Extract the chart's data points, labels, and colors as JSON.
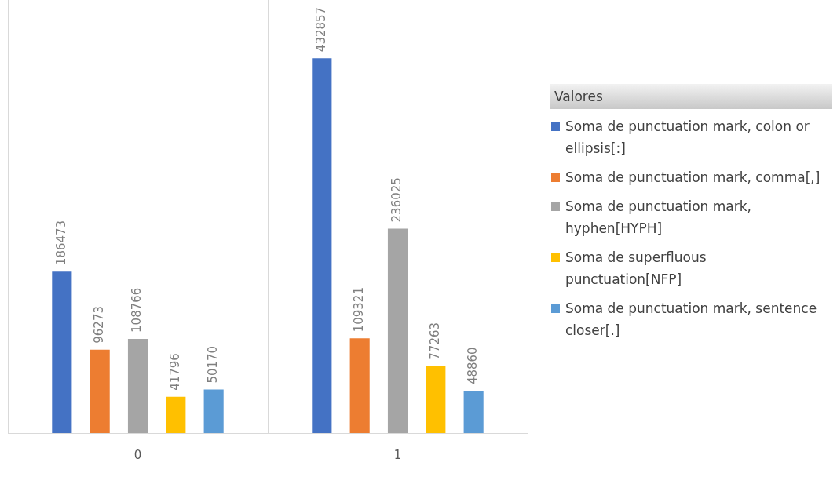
{
  "chart_data": {
    "type": "bar",
    "categories": [
      "0",
      "1"
    ],
    "legend_title": "Valores",
    "legend": "right",
    "grid": "x",
    "data_labels": true,
    "series": [
      {
        "name": "Soma de punctuation mark, colon or ellipsis[:]",
        "color": "#4472c4",
        "values": [
          186473,
          432857
        ]
      },
      {
        "name": "Soma de punctuation mark, comma[,]",
        "color": "#ed7d31",
        "values": [
          96273,
          109321
        ]
      },
      {
        "name": "Soma de punctuation mark, hyphen[HYPH]",
        "color": "#a5a5a5",
        "values": [
          108766,
          236025
        ]
      },
      {
        "name": "Soma de superfluous punctuation[NFP]",
        "color": "#ffc000",
        "values": [
          41796,
          77263
        ]
      },
      {
        "name": "Soma de punctuation mark, sentence closer[.]",
        "color": "#5b9bd5",
        "values": [
          50170,
          48860
        ]
      }
    ]
  }
}
